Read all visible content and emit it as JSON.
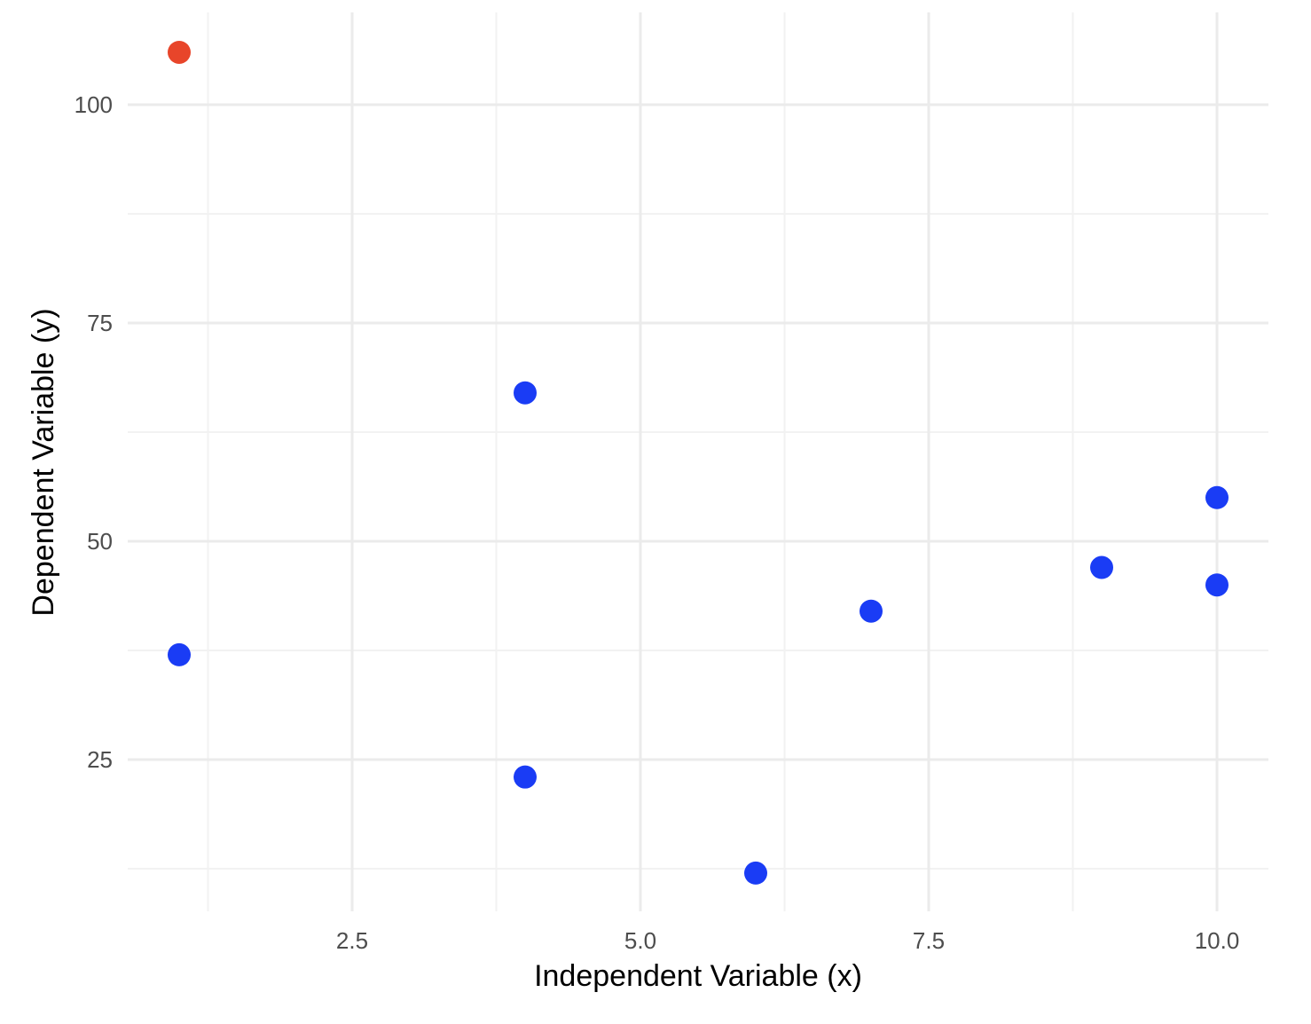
{
  "chart_data": {
    "type": "scatter",
    "title": "",
    "xlabel": "Independent Variable (x)",
    "ylabel": "Dependent Variable (y)",
    "xlim": [
      0.6,
      10.4
    ],
    "ylim": [
      8,
      109
    ],
    "x_ticks": [
      2.5,
      5.0,
      7.5,
      10.0
    ],
    "x_tick_labels": [
      "2.5",
      "5.0",
      "7.5",
      "10.0"
    ],
    "x_minor_ticks": [
      1.25,
      3.75,
      6.25,
      8.75
    ],
    "y_ticks": [
      25,
      50,
      75,
      100
    ],
    "y_tick_labels": [
      "25",
      "50",
      "75",
      "100"
    ],
    "y_minor_ticks": [
      12.5,
      37.5,
      62.5,
      87.5
    ],
    "grid": true,
    "legend": "none",
    "colors": {
      "normal": "#1a3cf5",
      "highlight": "#e8452a",
      "major_grid": "#ebebeb",
      "minor_grid": "#f2f2f2"
    },
    "series": [
      {
        "points": [
          {
            "x": 1,
            "y": 106,
            "highlight": true
          },
          {
            "x": 1,
            "y": 37,
            "highlight": false
          },
          {
            "x": 4,
            "y": 67,
            "highlight": false
          },
          {
            "x": 4,
            "y": 23,
            "highlight": false
          },
          {
            "x": 6,
            "y": 12,
            "highlight": false
          },
          {
            "x": 7,
            "y": 42,
            "highlight": false
          },
          {
            "x": 9,
            "y": 47,
            "highlight": false
          },
          {
            "x": 10,
            "y": 55,
            "highlight": false
          },
          {
            "x": 10,
            "y": 45,
            "highlight": false
          }
        ]
      }
    ]
  }
}
